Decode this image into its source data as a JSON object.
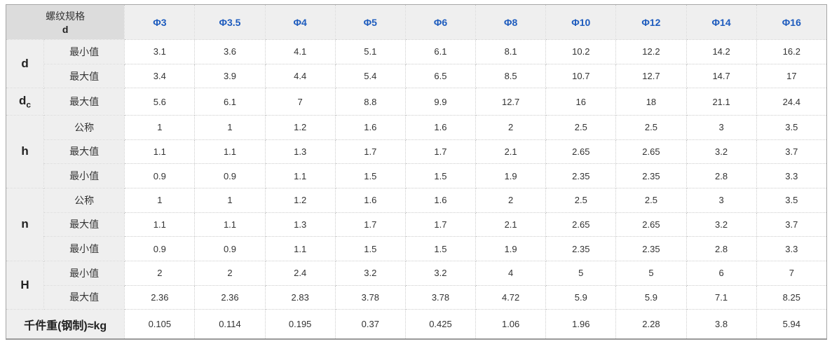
{
  "colors": {
    "header_text_blue": "#1e5cbe",
    "corner_bg": "#dcdcdc",
    "label_bg": "#efefef",
    "cell_bg": "#ffffff",
    "border_outer": "#a6a6a6",
    "border_inner_dotted": "#cccccc"
  },
  "table": {
    "corner_header": {
      "line1": "螺纹规格",
      "line2": "d"
    },
    "columns": [
      "Φ3",
      "Φ3.5",
      "Φ4",
      "Φ5",
      "Φ6",
      "Φ8",
      "Φ10",
      "Φ12",
      "Φ14",
      "Φ16"
    ],
    "groups": [
      {
        "label": "d",
        "sub": "",
        "rows": [
          {
            "label": "最小值",
            "values": [
              "3.1",
              "3.6",
              "4.1",
              "5.1",
              "6.1",
              "8.1",
              "10.2",
              "12.2",
              "14.2",
              "16.2"
            ]
          },
          {
            "label": "最大值",
            "values": [
              "3.4",
              "3.9",
              "4.4",
              "5.4",
              "6.5",
              "8.5",
              "10.7",
              "12.7",
              "14.7",
              "17"
            ]
          }
        ]
      },
      {
        "label": "d",
        "sub": "c",
        "rows": [
          {
            "label": "最大值",
            "values": [
              "5.6",
              "6.1",
              "7",
              "8.8",
              "9.9",
              "12.7",
              "16",
              "18",
              "21.1",
              "24.4"
            ]
          }
        ]
      },
      {
        "label": "h",
        "sub": "",
        "rows": [
          {
            "label": "公称",
            "values": [
              "1",
              "1",
              "1.2",
              "1.6",
              "1.6",
              "2",
              "2.5",
              "2.5",
              "3",
              "3.5"
            ]
          },
          {
            "label": "最大值",
            "values": [
              "1.1",
              "1.1",
              "1.3",
              "1.7",
              "1.7",
              "2.1",
              "2.65",
              "2.65",
              "3.2",
              "3.7"
            ]
          },
          {
            "label": "最小值",
            "values": [
              "0.9",
              "0.9",
              "1.1",
              "1.5",
              "1.5",
              "1.9",
              "2.35",
              "2.35",
              "2.8",
              "3.3"
            ]
          }
        ]
      },
      {
        "label": "n",
        "sub": "",
        "rows": [
          {
            "label": "公称",
            "values": [
              "1",
              "1",
              "1.2",
              "1.6",
              "1.6",
              "2",
              "2.5",
              "2.5",
              "3",
              "3.5"
            ]
          },
          {
            "label": "最大值",
            "values": [
              "1.1",
              "1.1",
              "1.3",
              "1.7",
              "1.7",
              "2.1",
              "2.65",
              "2.65",
              "3.2",
              "3.7"
            ]
          },
          {
            "label": "最小值",
            "values": [
              "0.9",
              "0.9",
              "1.1",
              "1.5",
              "1.5",
              "1.9",
              "2.35",
              "2.35",
              "2.8",
              "3.3"
            ]
          }
        ]
      },
      {
        "label": "H",
        "sub": "",
        "rows": [
          {
            "label": "最小值",
            "values": [
              "2",
              "2",
              "2.4",
              "3.2",
              "3.2",
              "4",
              "5",
              "5",
              "6",
              "7"
            ]
          },
          {
            "label": "最大值",
            "values": [
              "2.36",
              "2.36",
              "2.83",
              "3.78",
              "3.78",
              "4.72",
              "5.9",
              "5.9",
              "7.1",
              "8.25"
            ]
          }
        ]
      }
    ],
    "footer": {
      "label": "千件重(钢制)≈kg",
      "values": [
        "0.105",
        "0.114",
        "0.195",
        "0.37",
        "0.425",
        "1.06",
        "1.96",
        "2.28",
        "3.8",
        "5.94"
      ]
    }
  }
}
